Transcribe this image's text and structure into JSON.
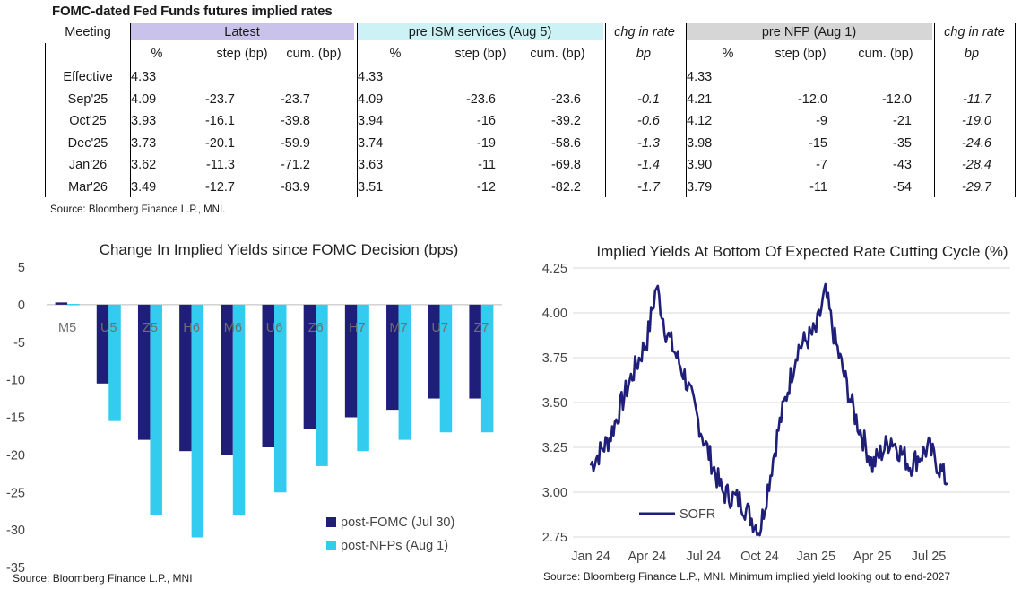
{
  "table": {
    "title": "FOMC-dated Fed Funds futures implied rates",
    "meeting_label": "Meeting",
    "groups": [
      {
        "name": "Latest",
        "color": "#c9c3ec"
      },
      {
        "name": "pre ISM services (Aug 5)",
        "color": "#ccf2f6"
      },
      {
        "name": "chg in rate",
        "color": "#ffffff"
      },
      {
        "name": "pre NFP (Aug 1)",
        "color": "#d6d6d6"
      },
      {
        "name": "chg in rate",
        "color": "#ffffff"
      }
    ],
    "subheaders": [
      "%",
      "step (bp)",
      "cum. (bp)",
      "%",
      "step (bp)",
      "cum. (bp)",
      "bp",
      "%",
      "step (bp)",
      "cum. (bp)",
      "bp"
    ],
    "rows": [
      {
        "meeting": "Effective",
        "cells": [
          "4.33",
          "",
          "",
          "4.33",
          "",
          "",
          "",
          "4.33",
          "",
          "",
          ""
        ]
      },
      {
        "meeting": "Sep'25",
        "cells": [
          "4.09",
          "-23.7",
          "-23.7",
          "4.09",
          "-23.6",
          "-23.6",
          "-0.1",
          "4.21",
          "-12.0",
          "-12.0",
          "-11.7"
        ]
      },
      {
        "meeting": "Oct'25",
        "cells": [
          "3.93",
          "-16.1",
          "-39.8",
          "3.94",
          "-16",
          "-39.2",
          "-0.6",
          "4.12",
          "-9",
          "-21",
          "-19.0"
        ]
      },
      {
        "meeting": "Dec'25",
        "cells": [
          "3.73",
          "-20.1",
          "-59.9",
          "3.74",
          "-19",
          "-58.6",
          "-1.3",
          "3.98",
          "-15",
          "-35",
          "-24.6"
        ]
      },
      {
        "meeting": "Jan'26",
        "cells": [
          "3.62",
          "-11.3",
          "-71.2",
          "3.63",
          "-11",
          "-69.8",
          "-1.4",
          "3.90",
          "-7",
          "-43",
          "-28.4"
        ]
      },
      {
        "meeting": "Mar'26",
        "cells": [
          "3.49",
          "-12.7",
          "-83.9",
          "3.51",
          "-12",
          "-82.2",
          "-1.7",
          "3.79",
          "-11",
          "-54",
          "-29.7"
        ]
      }
    ],
    "source": "Source: Bloomberg Finance L.P., MNI."
  },
  "chart_data": [
    {
      "type": "bar",
      "title": "Change In Implied Yields since FOMC Decision (bps)",
      "categories": [
        "M5",
        "U5",
        "Z5",
        "H6",
        "M6",
        "U6",
        "Z6",
        "H7",
        "M7",
        "U7",
        "Z7"
      ],
      "series": [
        {
          "name": "post-FOMC (Jul 30)",
          "color": "#1f1f7a",
          "values": [
            0.3,
            -10.5,
            -18,
            -19.5,
            -20,
            -19,
            -16.5,
            -15,
            -14,
            -12.5,
            -12.5
          ]
        },
        {
          "name": "post-NFPs (Aug 1)",
          "color": "#33ccee",
          "values": [
            0.1,
            -15.5,
            -28,
            -31,
            -28,
            -25,
            -21.5,
            -19.5,
            -18,
            -17,
            -17
          ]
        }
      ],
      "ylim": [
        -35,
        5
      ],
      "yticks": [
        5,
        0,
        -5,
        -10,
        -15,
        -20,
        -25,
        -30,
        -35
      ],
      "xlabel": "",
      "ylabel": "",
      "legend": "bottom-right",
      "source": "Source: Bloomberg Finance L.P., MNI"
    },
    {
      "type": "line",
      "title": "Implied Yields At Bottom Of Expected Rate Cutting Cycle (%)",
      "series": [
        {
          "name": "SOFR",
          "color": "#1f1f7a",
          "x": [
            "2024-01",
            "2024-02",
            "2024-03",
            "2024-04",
            "2024-04",
            "2024-05",
            "2024-06",
            "2024-07",
            "2024-08",
            "2024-09",
            "2024-10",
            "2024-11",
            "2024-12",
            "2025-01",
            "2025-01",
            "2025-02",
            "2025-03",
            "2025-04",
            "2025-05",
            "2025-06",
            "2025-07",
            "2025-08"
          ],
          "y": [
            3.15,
            3.3,
            3.6,
            3.85,
            4.15,
            3.9,
            3.65,
            3.3,
            3.0,
            2.95,
            2.78,
            3.35,
            3.8,
            3.9,
            4.12,
            3.85,
            3.45,
            3.15,
            3.3,
            3.15,
            3.25,
            3.05
          ]
        }
      ],
      "xticks": [
        "Jan 24",
        "Apr 24",
        "Jul 24",
        "Oct 24",
        "Jan 25",
        "Apr 25",
        "Jul 25"
      ],
      "ylim": [
        2.75,
        4.25
      ],
      "yticks": [
        "4.25",
        "4.00",
        "3.75",
        "3.50",
        "3.25",
        "3.00",
        "2.75"
      ],
      "xlabel": "",
      "ylabel": "",
      "legend": "bottom-left",
      "source": "Source: Bloomberg Finance L.P., MNI. Minimum implied yield looking out to end-2027"
    }
  ]
}
